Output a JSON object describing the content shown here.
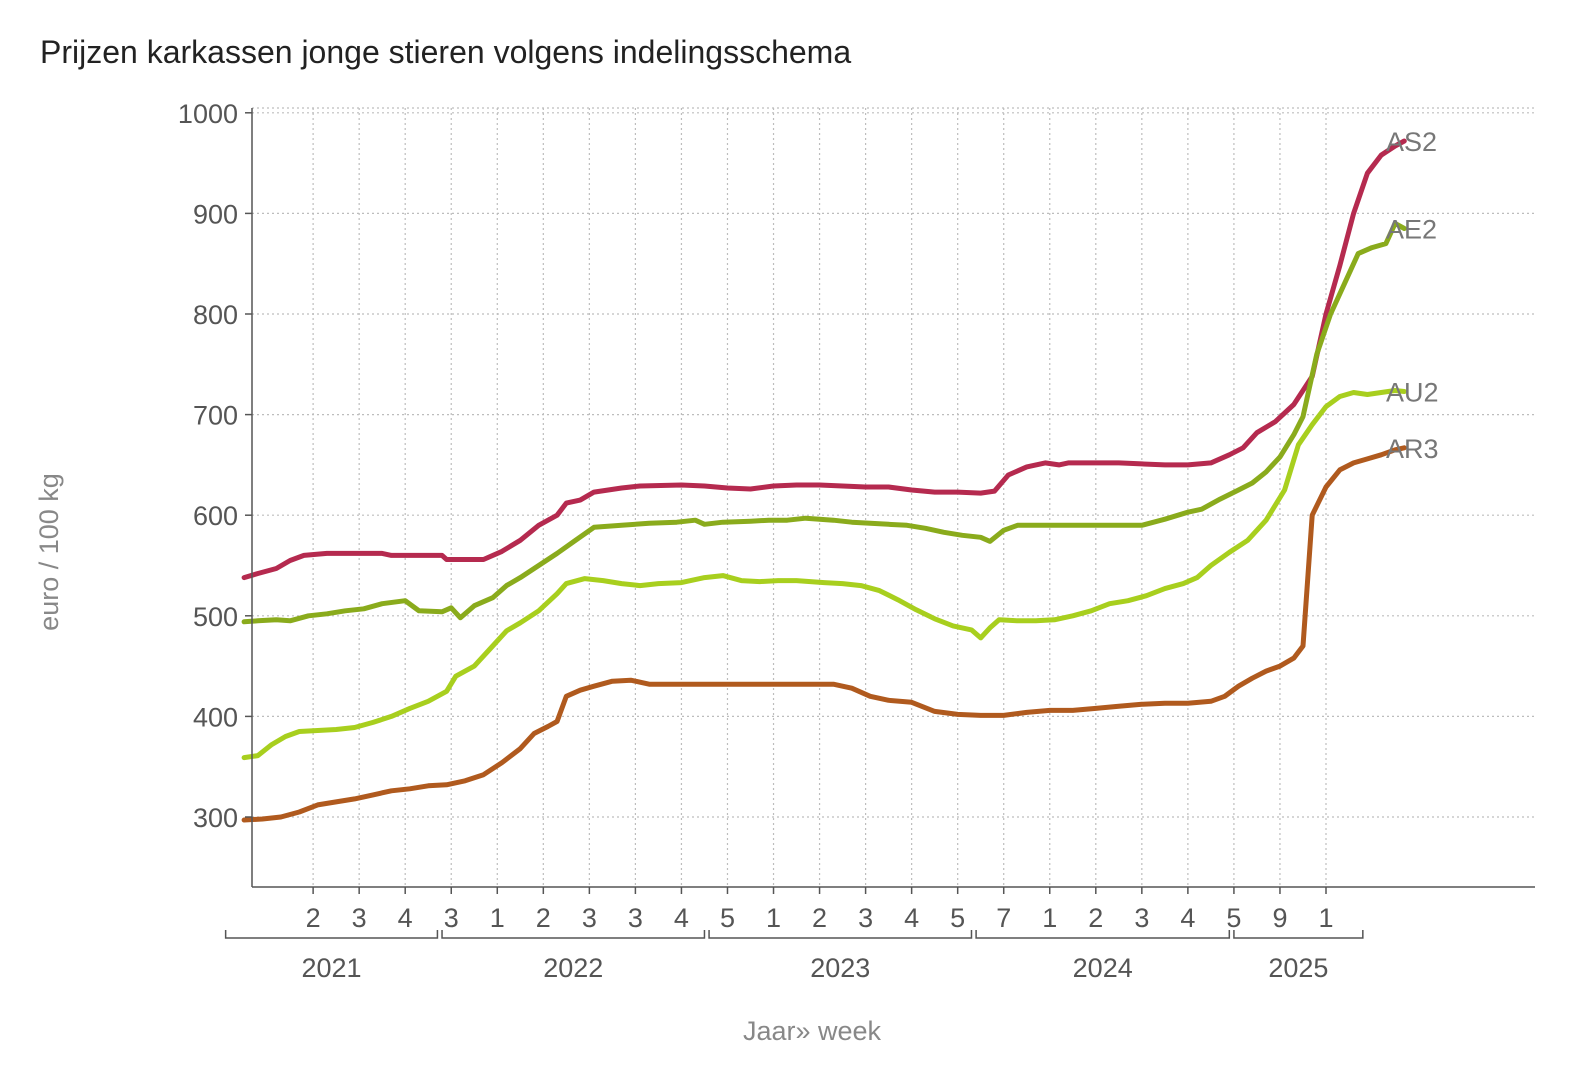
{
  "chart_data": {
    "type": "line",
    "title": "Prijzen karkassen jonge stieren volgens indelingsschema",
    "xlabel": "Jaar» week",
    "ylabel": "euro / 100 kg",
    "ylim": [
      230,
      1005
    ],
    "yticks": [
      300,
      400,
      500,
      600,
      700,
      800,
      900,
      1000
    ],
    "grid": true,
    "legend": "labels at line ends",
    "xlim": [
      0,
      243
    ],
    "week_ticks": [
      {
        "x": 15,
        "label": "2"
      },
      {
        "x": 25,
        "label": "3"
      },
      {
        "x": 35,
        "label": "4"
      },
      {
        "x": 45,
        "label": "3"
      },
      {
        "x": 55,
        "label": "1"
      },
      {
        "x": 65,
        "label": "2"
      },
      {
        "x": 75,
        "label": "3"
      },
      {
        "x": 85,
        "label": "3"
      },
      {
        "x": 95,
        "label": "4"
      },
      {
        "x": 105,
        "label": "5"
      },
      {
        "x": 115,
        "label": "1"
      },
      {
        "x": 125,
        "label": "2"
      },
      {
        "x": 135,
        "label": "3"
      },
      {
        "x": 145,
        "label": "4"
      },
      {
        "x": 155,
        "label": "5"
      },
      {
        "x": 165,
        "label": "7"
      },
      {
        "x": 175,
        "label": "1"
      },
      {
        "x": 185,
        "label": "2"
      },
      {
        "x": 195,
        "label": "3"
      },
      {
        "x": 205,
        "label": "4"
      },
      {
        "x": 215,
        "label": "5"
      },
      {
        "x": 225,
        "label": "9"
      },
      {
        "x": 235,
        "label": "1"
      }
    ],
    "years": [
      {
        "label": "2021",
        "start": -4,
        "end": 42
      },
      {
        "label": "2022",
        "start": 43,
        "end": 100
      },
      {
        "label": "2023",
        "start": 101,
        "end": 158
      },
      {
        "label": "2024",
        "start": 159,
        "end": 214
      },
      {
        "label": "2025",
        "start": 215,
        "end": 243
      }
    ],
    "series": [
      {
        "name": "AS2",
        "color": "#b52a4f",
        "points": [
          [
            0,
            538
          ],
          [
            3,
            542
          ],
          [
            7,
            547
          ],
          [
            10,
            555
          ],
          [
            13,
            560
          ],
          [
            18,
            562
          ],
          [
            30,
            562
          ],
          [
            32,
            560
          ],
          [
            37,
            560
          ],
          [
            43,
            560
          ],
          [
            44,
            556
          ],
          [
            52,
            556
          ],
          [
            56,
            564
          ],
          [
            60,
            575
          ],
          [
            64,
            590
          ],
          [
            68,
            600
          ],
          [
            70,
            612
          ],
          [
            73,
            615
          ],
          [
            76,
            623
          ],
          [
            82,
            627
          ],
          [
            86,
            629
          ],
          [
            95,
            630
          ],
          [
            100,
            629
          ],
          [
            105,
            627
          ],
          [
            110,
            626
          ],
          [
            115,
            629
          ],
          [
            120,
            630
          ],
          [
            125,
            630
          ],
          [
            130,
            629
          ],
          [
            135,
            628
          ],
          [
            140,
            628
          ],
          [
            145,
            625
          ],
          [
            150,
            623
          ],
          [
            155,
            623
          ],
          [
            160,
            622
          ],
          [
            163,
            624
          ],
          [
            166,
            640
          ],
          [
            170,
            648
          ],
          [
            174,
            652
          ],
          [
            177,
            650
          ],
          [
            179,
            652
          ],
          [
            190,
            652
          ],
          [
            195,
            651
          ],
          [
            200,
            650
          ],
          [
            205,
            650
          ],
          [
            210,
            652
          ],
          [
            214,
            660
          ],
          [
            217,
            667
          ],
          [
            220,
            682
          ],
          [
            224,
            693
          ],
          [
            228,
            710
          ],
          [
            232,
            738
          ],
          [
            235,
            800
          ],
          [
            238,
            848
          ],
          [
            241,
            900
          ],
          [
            244,
            940
          ],
          [
            247,
            958
          ],
          [
            250,
            967
          ],
          [
            252,
            972
          ]
        ]
      },
      {
        "name": "AE2",
        "color": "#8aab1c",
        "points": [
          [
            0,
            494
          ],
          [
            3,
            495
          ],
          [
            7,
            496
          ],
          [
            10,
            495
          ],
          [
            14,
            500
          ],
          [
            18,
            502
          ],
          [
            22,
            505
          ],
          [
            26,
            507
          ],
          [
            30,
            512
          ],
          [
            35,
            515
          ],
          [
            38,
            505
          ],
          [
            43,
            504
          ],
          [
            45,
            508
          ],
          [
            47,
            498
          ],
          [
            50,
            510
          ],
          [
            54,
            518
          ],
          [
            57,
            530
          ],
          [
            60,
            538
          ],
          [
            64,
            550
          ],
          [
            68,
            562
          ],
          [
            72,
            575
          ],
          [
            76,
            588
          ],
          [
            82,
            590
          ],
          [
            88,
            592
          ],
          [
            94,
            593
          ],
          [
            98,
            595
          ],
          [
            100,
            591
          ],
          [
            104,
            593
          ],
          [
            110,
            594
          ],
          [
            114,
            595
          ],
          [
            118,
            595
          ],
          [
            122,
            597
          ],
          [
            128,
            595
          ],
          [
            132,
            593
          ],
          [
            136,
            592
          ],
          [
            140,
            591
          ],
          [
            144,
            590
          ],
          [
            148,
            587
          ],
          [
            152,
            583
          ],
          [
            156,
            580
          ],
          [
            160,
            578
          ],
          [
            162,
            574
          ],
          [
            165,
            585
          ],
          [
            168,
            590
          ],
          [
            172,
            590
          ],
          [
            180,
            590
          ],
          [
            188,
            590
          ],
          [
            195,
            590
          ],
          [
            200,
            596
          ],
          [
            205,
            603
          ],
          [
            208,
            606
          ],
          [
            212,
            616
          ],
          [
            216,
            625
          ],
          [
            219,
            632
          ],
          [
            222,
            643
          ],
          [
            225,
            658
          ],
          [
            228,
            680
          ],
          [
            230,
            698
          ],
          [
            233,
            760
          ],
          [
            236,
            800
          ],
          [
            239,
            830
          ],
          [
            242,
            860
          ],
          [
            245,
            866
          ],
          [
            248,
            870
          ],
          [
            250,
            890
          ],
          [
            252,
            885
          ]
        ]
      },
      {
        "name": "AU2",
        "color": "#a8cf1e",
        "points": [
          [
            0,
            359
          ],
          [
            3,
            361
          ],
          [
            6,
            372
          ],
          [
            9,
            380
          ],
          [
            12,
            385
          ],
          [
            16,
            386
          ],
          [
            20,
            387
          ],
          [
            24,
            389
          ],
          [
            28,
            394
          ],
          [
            32,
            400
          ],
          [
            36,
            408
          ],
          [
            40,
            415
          ],
          [
            44,
            425
          ],
          [
            46,
            440
          ],
          [
            50,
            450
          ],
          [
            54,
            470
          ],
          [
            57,
            485
          ],
          [
            60,
            493
          ],
          [
            64,
            505
          ],
          [
            68,
            522
          ],
          [
            70,
            532
          ],
          [
            74,
            537
          ],
          [
            78,
            535
          ],
          [
            82,
            532
          ],
          [
            86,
            530
          ],
          [
            90,
            532
          ],
          [
            95,
            533
          ],
          [
            100,
            538
          ],
          [
            104,
            540
          ],
          [
            108,
            535
          ],
          [
            112,
            534
          ],
          [
            116,
            535
          ],
          [
            120,
            535
          ],
          [
            126,
            533
          ],
          [
            130,
            532
          ],
          [
            134,
            530
          ],
          [
            138,
            525
          ],
          [
            142,
            516
          ],
          [
            146,
            506
          ],
          [
            150,
            497
          ],
          [
            154,
            490
          ],
          [
            158,
            486
          ],
          [
            160,
            478
          ],
          [
            162,
            488
          ],
          [
            164,
            496
          ],
          [
            168,
            495
          ],
          [
            172,
            495
          ],
          [
            176,
            496
          ],
          [
            180,
            500
          ],
          [
            184,
            505
          ],
          [
            188,
            512
          ],
          [
            192,
            515
          ],
          [
            196,
            520
          ],
          [
            200,
            527
          ],
          [
            204,
            532
          ],
          [
            207,
            538
          ],
          [
            210,
            550
          ],
          [
            214,
            563
          ],
          [
            218,
            575
          ],
          [
            222,
            595
          ],
          [
            226,
            625
          ],
          [
            229,
            670
          ],
          [
            232,
            690
          ],
          [
            235,
            708
          ],
          [
            238,
            718
          ],
          [
            241,
            722
          ],
          [
            244,
            720
          ],
          [
            247,
            722
          ],
          [
            250,
            724
          ],
          [
            252,
            723
          ]
        ]
      },
      {
        "name": "AR3",
        "color": "#b05a1e",
        "points": [
          [
            0,
            297
          ],
          [
            4,
            298
          ],
          [
            8,
            300
          ],
          [
            12,
            305
          ],
          [
            16,
            312
          ],
          [
            20,
            315
          ],
          [
            24,
            318
          ],
          [
            28,
            322
          ],
          [
            32,
            326
          ],
          [
            36,
            328
          ],
          [
            40,
            331
          ],
          [
            44,
            332
          ],
          [
            48,
            336
          ],
          [
            52,
            342
          ],
          [
            56,
            354
          ],
          [
            60,
            368
          ],
          [
            63,
            383
          ],
          [
            66,
            390
          ],
          [
            68,
            395
          ],
          [
            70,
            420
          ],
          [
            73,
            426
          ],
          [
            76,
            430
          ],
          [
            80,
            435
          ],
          [
            84,
            436
          ],
          [
            88,
            432
          ],
          [
            96,
            432
          ],
          [
            104,
            432
          ],
          [
            112,
            432
          ],
          [
            120,
            432
          ],
          [
            128,
            432
          ],
          [
            132,
            428
          ],
          [
            136,
            420
          ],
          [
            140,
            416
          ],
          [
            145,
            414
          ],
          [
            150,
            405
          ],
          [
            155,
            402
          ],
          [
            160,
            401
          ],
          [
            165,
            401
          ],
          [
            170,
            404
          ],
          [
            175,
            406
          ],
          [
            180,
            406
          ],
          [
            185,
            408
          ],
          [
            190,
            410
          ],
          [
            195,
            412
          ],
          [
            200,
            413
          ],
          [
            205,
            413
          ],
          [
            210,
            415
          ],
          [
            213,
            420
          ],
          [
            216,
            430
          ],
          [
            219,
            438
          ],
          [
            222,
            445
          ],
          [
            225,
            450
          ],
          [
            228,
            458
          ],
          [
            230,
            470
          ],
          [
            232,
            600
          ],
          [
            235,
            628
          ],
          [
            238,
            645
          ],
          [
            241,
            652
          ],
          [
            244,
            656
          ],
          [
            247,
            660
          ],
          [
            250,
            665
          ],
          [
            252,
            667
          ]
        ]
      }
    ]
  }
}
